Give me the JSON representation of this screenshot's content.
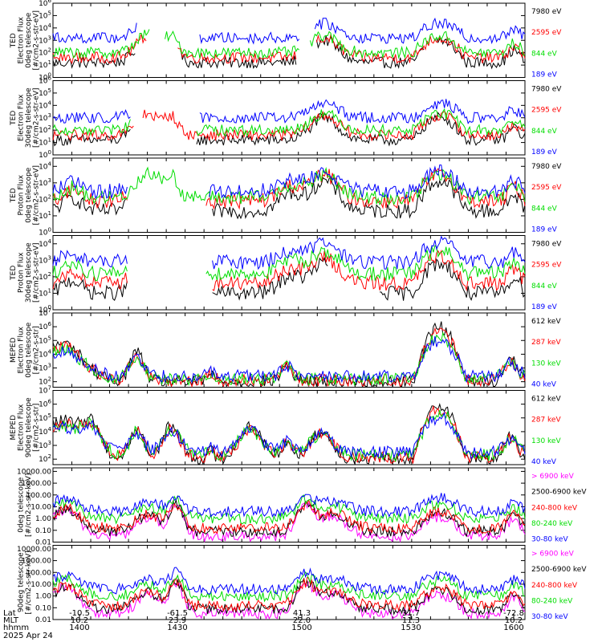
{
  "figure": {
    "footer": {
      "rows": [
        {
          "label": "Lat",
          "values": [
            "-10.5",
            "-61.5",
            "41.3",
            "31.7",
            "-72.8"
          ]
        },
        {
          "label": "MLT",
          "values": [
            "10.2",
            "23.9",
            "22.0",
            "11.3",
            "10.2"
          ]
        },
        {
          "label": "hhmm",
          "values": [
            "1400",
            "1430",
            "1500",
            "1530",
            "1600"
          ]
        }
      ],
      "date": "2025 Apr 24"
    }
  },
  "colors": {
    "black": "#000000",
    "red": "#ff0000",
    "green": "#00dd00",
    "blue": "#0000ff",
    "magenta": "#ff00ff"
  },
  "chart_data": [
    {
      "type": "line",
      "panel": 1,
      "log_y": true,
      "ylabel": [
        "TED",
        "Electron Flux",
        "0deg telescope",
        "[#/cm2-s-str-eV]"
      ],
      "yticks": [
        "10^6",
        "10^5",
        "10^4",
        "10^3",
        "10^2",
        "10^1",
        "10^0"
      ],
      "ylim_exp": [
        0,
        6
      ],
      "xlim_hhmm": [
        "1352",
        "1602"
      ],
      "series": [
        {
          "name": "7980 eV",
          "color": "#000000",
          "base": 1.2,
          "gap": [
            [
              53,
              80
            ],
            [
              155,
              166
            ],
            [
              236,
              242
            ]
          ]
        },
        {
          "name": "2595 eV",
          "color": "#ff0000",
          "base": 1.6,
          "gap": [
            [
              60,
              78
            ],
            [
              155,
              166
            ]
          ]
        },
        {
          "name": "844 eV",
          "color": "#00dd00",
          "base": 2.0,
          "gap": [
            [
              62,
              70
            ],
            [
              157,
              162
            ]
          ]
        },
        {
          "name": "189 eV",
          "color": "#0000ff",
          "base": 3.2,
          "gap": [
            [
              54,
              92
            ],
            [
              157,
              165
            ]
          ]
        }
      ]
    },
    {
      "type": "line",
      "panel": 2,
      "log_y": true,
      "ylabel": [
        "TED",
        "Electron Flux",
        "30deg telescope",
        "[#/cm2-s-str-eV]"
      ],
      "yticks": [
        "10^6",
        "10^5",
        "10^4",
        "10^3",
        "10^2",
        "10^1",
        "10^0"
      ],
      "ylim_exp": [
        0,
        6
      ],
      "xlim_hhmm": [
        "1352",
        "1602"
      ],
      "series": [
        {
          "name": "7980 eV",
          "color": "#000000",
          "base": 1.2,
          "gap": [
            [
              50,
              90
            ]
          ]
        },
        {
          "name": "2595 eV",
          "color": "#ff0000",
          "base": 1.6,
          "gap": [
            [
              52,
              56
            ]
          ]
        },
        {
          "name": "844 eV",
          "color": "#00dd00",
          "base": 2.0,
          "gap": [
            [
              50,
              90
            ]
          ]
        },
        {
          "name": "189 eV",
          "color": "#0000ff",
          "base": 3.0,
          "gap": [
            [
              50,
              92
            ]
          ]
        }
      ]
    },
    {
      "type": "line",
      "panel": 3,
      "log_y": true,
      "ylabel": [
        "TED",
        "Proton Flux",
        "0deg telescope",
        "[#/cm2-s-str-eV]"
      ],
      "yticks": [
        "10^4",
        "10^3",
        "10^2",
        "10^1",
        "10^0"
      ],
      "ylim_exp": [
        0,
        4.5
      ],
      "xlim_hhmm": [
        "1352",
        "1602"
      ],
      "series": [
        {
          "name": "7980 eV",
          "color": "#000000",
          "base": 1.3,
          "gap": [
            [
              48,
              100
            ]
          ]
        },
        {
          "name": "2595 eV",
          "color": "#ff0000",
          "base": 1.9,
          "gap": [
            [
              48,
              96
            ]
          ]
        },
        {
          "name": "844 eV",
          "color": "#00dd00",
          "base": 2.1,
          "gap": []
        },
        {
          "name": "189 eV",
          "color": "#0000ff",
          "base": 2.5,
          "gap": [
            [
              48,
              98
            ]
          ]
        }
      ]
    },
    {
      "type": "line",
      "panel": 4,
      "log_y": true,
      "ylabel": [
        "TED",
        "Proton Flux",
        "30deg telescope",
        "[#/cm2-s-str-eV]"
      ],
      "yticks": [
        "10^4",
        "10^3",
        "10^2",
        "10^1",
        "10^0"
      ],
      "ylim_exp": [
        0,
        4.5
      ],
      "xlim_hhmm": [
        "1352",
        "1602"
      ],
      "series": [
        {
          "name": "7980 eV",
          "color": "#000000",
          "base": 1.0,
          "gap": [
            [
              48,
              100
            ],
            [
              175,
              206
            ]
          ]
        },
        {
          "name": "2595 eV",
          "color": "#ff0000",
          "base": 1.6,
          "gap": [
            [
              48,
              100
            ]
          ]
        },
        {
          "name": "844 eV",
          "color": "#00dd00",
          "base": 2.2,
          "gap": [
            [
              48,
              96
            ]
          ]
        },
        {
          "name": "189 eV",
          "color": "#0000ff",
          "base": 2.9,
          "gap": [
            [
              48,
              100
            ]
          ]
        }
      ]
    },
    {
      "type": "line",
      "panel": 5,
      "log_y": true,
      "ylabel": [
        "MEPED",
        "Electron Flux",
        "0deg telescope",
        "[#/cm2-s-str]"
      ],
      "yticks": [
        "10^7",
        "10^6",
        "10^5",
        "10^4",
        "10^3",
        "10^2"
      ],
      "ylim_exp": [
        1.6,
        7
      ],
      "xlim_hhmm": [
        "1352",
        "1602"
      ],
      "series": [
        {
          "name": "612 keV",
          "color": "#000000",
          "base": 2.0,
          "gap": []
        },
        {
          "name": "287 keV",
          "color": "#ff0000",
          "base": 2.1,
          "gap": []
        },
        {
          "name": "130 keV",
          "color": "#00dd00",
          "base": 2.2,
          "gap": []
        },
        {
          "name": "40 keV",
          "color": "#0000ff",
          "base": 2.4,
          "gap": []
        }
      ]
    },
    {
      "type": "line",
      "panel": 6,
      "log_y": true,
      "ylabel": [
        "MEPED",
        "Electron Flux",
        "90deg telescope",
        "[#/cm2-s-str]"
      ],
      "yticks": [
        "10^7",
        "10^6",
        "10^5",
        "10^4",
        "10^3",
        "10^2"
      ],
      "ylim_exp": [
        1.6,
        7
      ],
      "xlim_hhmm": [
        "1352",
        "1602"
      ],
      "series": [
        {
          "name": "612 keV",
          "color": "#000000",
          "base": 2.0,
          "gap": []
        },
        {
          "name": "287 keV",
          "color": "#ff0000",
          "base": 2.1,
          "gap": []
        },
        {
          "name": "130 keV",
          "color": "#00dd00",
          "base": 2.3,
          "gap": []
        },
        {
          "name": "40 keV",
          "color": "#0000ff",
          "base": 2.5,
          "gap": []
        }
      ]
    },
    {
      "type": "line",
      "panel": 7,
      "log_y": true,
      "ylabel": [
        "0deg telescope",
        "[#/cm2-s-str-keV]"
      ],
      "yticks": [
        "10000.00",
        "1000.00",
        "100.00",
        "10.00",
        "1.00",
        "0.10",
        "0.01"
      ],
      "ylim_exp": [
        -2,
        4.3
      ],
      "xlim_hhmm": [
        "1352",
        "1602"
      ],
      "series": [
        {
          "name": "> 6900 keV",
          "color": "#ff00ff",
          "base": -1.5,
          "gap": []
        },
        {
          "name": "2500-6900 keV",
          "color": "#000000",
          "base": -1.1,
          "gap": []
        },
        {
          "name": "240-800 keV",
          "color": "#ff0000",
          "base": -0.8,
          "gap": []
        },
        {
          "name": "80-240 keV",
          "color": "#00dd00",
          "base": 0.0,
          "gap": []
        },
        {
          "name": "30-80 keV",
          "color": "#0000ff",
          "base": 0.6,
          "gap": []
        }
      ]
    },
    {
      "type": "line",
      "panel": 8,
      "log_y": true,
      "ylabel": [
        "90deg telescope",
        "[#/cm2-s-str-keV]"
      ],
      "yticks": [
        "10000.00",
        "1000.00",
        "100.00",
        "10.00",
        "1.00",
        "0.10",
        "0.01"
      ],
      "ylim_exp": [
        -2,
        4.3
      ],
      "xlim_hhmm": [
        "1352",
        "1602"
      ],
      "series": [
        {
          "name": "> 6900 keV",
          "color": "#ff00ff",
          "base": -1.5,
          "gap": []
        },
        {
          "name": "2500-6900 keV",
          "color": "#000000",
          "base": -1.1,
          "gap": []
        },
        {
          "name": "240-800 keV",
          "color": "#ff0000",
          "base": -0.8,
          "gap": []
        },
        {
          "name": "80-240 keV",
          "color": "#00dd00",
          "base": 0.0,
          "gap": []
        },
        {
          "name": "30-80 keV",
          "color": "#0000ff",
          "base": 0.6,
          "gap": []
        }
      ]
    }
  ]
}
